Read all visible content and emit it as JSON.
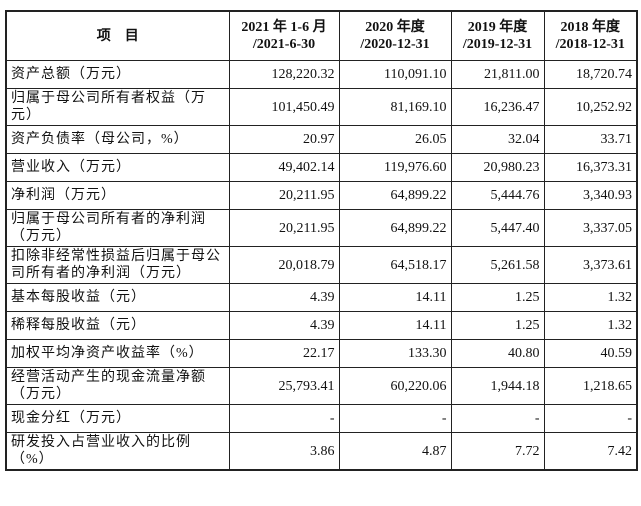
{
  "table": {
    "headers": [
      "项　目",
      "2021 年 1-6 月\n/2021-6-30",
      "2020 年度\n/2020-12-31",
      "2019 年度\n/2019-12-31",
      "2018 年度\n/2018-12-31"
    ],
    "header_lines": [
      [
        "项　目"
      ],
      [
        "2021 年 1-6 月",
        "/2021-6-30"
      ],
      [
        "2020 年度",
        "/2020-12-31"
      ],
      [
        "2019 年度",
        "/2019-12-31"
      ],
      [
        "2018 年度",
        "/2018-12-31"
      ]
    ],
    "rows": [
      {
        "label": "资产总额（万元）",
        "values": [
          "128,220.32",
          "110,091.10",
          "21,811.00",
          "18,720.74"
        ]
      },
      {
        "label": "归属于母公司所有者权益（万元）",
        "values": [
          "101,450.49",
          "81,169.10",
          "16,236.47",
          "10,252.92"
        ]
      },
      {
        "label": "资产负债率（母公司，%）",
        "values": [
          "20.97",
          "26.05",
          "32.04",
          "33.71"
        ]
      },
      {
        "label": "营业收入（万元）",
        "values": [
          "49,402.14",
          "119,976.60",
          "20,980.23",
          "16,373.31"
        ]
      },
      {
        "label": "净利润（万元）",
        "values": [
          "20,211.95",
          "64,899.22",
          "5,444.76",
          "3,340.93"
        ]
      },
      {
        "label": "归属于母公司所有者的净利润（万元）",
        "values": [
          "20,211.95",
          "64,899.22",
          "5,447.40",
          "3,337.05"
        ]
      },
      {
        "label": "扣除非经常性损益后归属于母公司所有者的净利润（万元）",
        "values": [
          "20,018.79",
          "64,518.17",
          "5,261.58",
          "3,373.61"
        ]
      },
      {
        "label": "基本每股收益（元）",
        "values": [
          "4.39",
          "14.11",
          "1.25",
          "1.32"
        ]
      },
      {
        "label": "稀释每股收益（元）",
        "values": [
          "4.39",
          "14.11",
          "1.25",
          "1.32"
        ]
      },
      {
        "label": "加权平均净资产收益率（%）",
        "values": [
          "22.17",
          "133.30",
          "40.80",
          "40.59"
        ]
      },
      {
        "label": "经营活动产生的现金流量净额（万元）",
        "values": [
          "25,793.41",
          "60,220.06",
          "1,944.18",
          "1,218.65"
        ]
      },
      {
        "label": "现金分红（万元）",
        "values": [
          "-",
          "-",
          "-",
          "-"
        ]
      },
      {
        "label": "研发投入占营业收入的比例（%）",
        "values": [
          "3.86",
          "4.87",
          "7.72",
          "7.42"
        ]
      }
    ]
  }
}
